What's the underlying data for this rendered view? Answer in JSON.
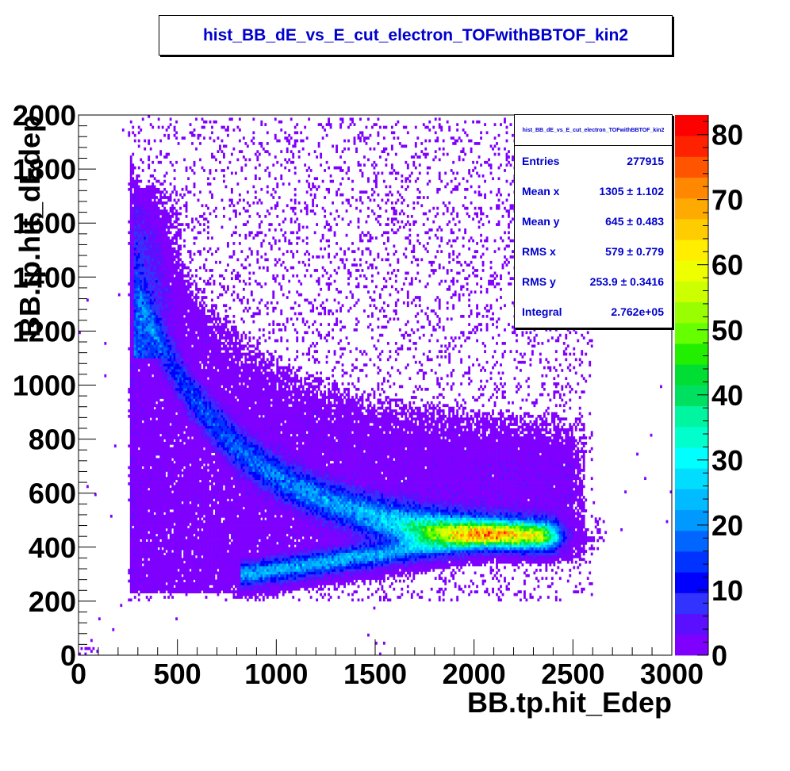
{
  "title": "hist_BB_dE_vs_E_cut_electron_TOFwithBBTOF_kin2",
  "stats": {
    "title": "hist_BB_dE_vs_E_cut_electron_TOFwithBBTOF_kin2",
    "rows": [
      {
        "label": "Entries",
        "value": "277915"
      },
      {
        "label": "Mean x",
        "value": "1305 ±  1.102"
      },
      {
        "label": "Mean y",
        "value": "645 ±  0.483"
      },
      {
        "label": "RMS x",
        "value": "579 ±  0.779"
      },
      {
        "label": "RMS y",
        "value": "253.9 ± 0.3416"
      },
      {
        "label": "Integral",
        "value": "2.762e+05"
      }
    ]
  },
  "chart_data": {
    "type": "heatmap",
    "title": "hist_BB_dE_vs_E_cut_electron_TOFwithBBTOF_kin2",
    "xlabel": "BB.tp.hit_Edep",
    "ylabel": "BB.tp.hit_dEdep",
    "xlim": [
      0,
      3000
    ],
    "ylim": [
      0,
      2000
    ],
    "x_ticks": [
      "0",
      "500",
      "1000",
      "1500",
      "2000",
      "2500",
      "3000"
    ],
    "y_ticks": [
      "0",
      "200",
      "400",
      "600",
      "800",
      "1000",
      "1200",
      "1400",
      "1600",
      "1800",
      "2000"
    ],
    "z_range": [
      0,
      83
    ],
    "z_ticks": [
      "0",
      "10",
      "20",
      "30",
      "40",
      "50",
      "60",
      "70",
      "80"
    ],
    "palette": [
      "#7f00ff",
      "#5a10ff",
      "#3333ff",
      "#0000ff",
      "#0033ff",
      "#0066ff",
      "#0099ff",
      "#00bbff",
      "#00ddff",
      "#00ffff",
      "#00ffcc",
      "#00f5a0",
      "#00e060",
      "#00dd33",
      "#22ee00",
      "#66ff00",
      "#99ff00",
      "#ccff00",
      "#eeff00",
      "#ffee00",
      "#ffcc00",
      "#ffaa00",
      "#ff8800",
      "#ff5500",
      "#ff2200",
      "#ff0000"
    ],
    "density_ridges": [
      {
        "x": [
          300,
          600,
          1000,
          1400,
          1800,
          2100,
          2400
        ],
        "y": [
          1250,
          900,
          700,
          550,
          470,
          440,
          430
        ]
      },
      {
        "x": [
          850,
          1200,
          1600,
          2000,
          2400
        ],
        "y": [
          300,
          350,
          400,
          430,
          430
        ]
      }
    ],
    "peak": {
      "x": 2000,
      "y": 450,
      "z": 83
    }
  }
}
